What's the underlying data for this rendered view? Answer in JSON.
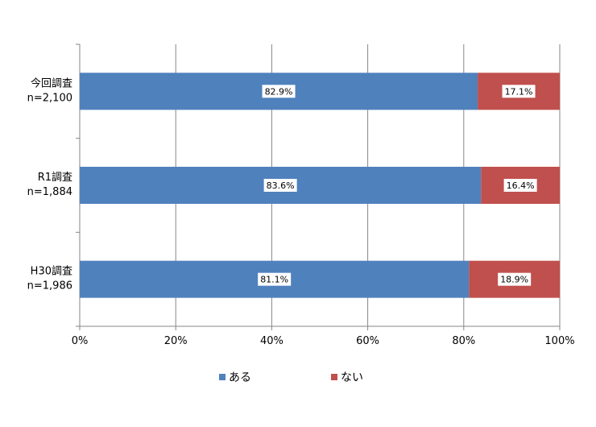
{
  "chart_data": {
    "type": "bar",
    "orientation": "horizontal",
    "stacked": true,
    "percent": true,
    "categories": [
      [
        "今回調査",
        "n=2,100"
      ],
      [
        "R1調査",
        "n=1,884"
      ],
      [
        "H30調査",
        "n=1,986"
      ]
    ],
    "series": [
      {
        "name": "ある",
        "color": "#4f81bd",
        "values": [
          82.9,
          83.6,
          81.1
        ],
        "labels": [
          "82.9%",
          "83.6%",
          "81.1%"
        ]
      },
      {
        "name": "ない",
        "color": "#c0504d",
        "values": [
          17.1,
          16.4,
          18.9
        ],
        "labels": [
          "17.1%",
          "16.4%",
          "18.9%"
        ]
      }
    ],
    "x_ticks": [
      "0%",
      "20%",
      "40%",
      "60%",
      "80%",
      "100%"
    ],
    "xlim": [
      0,
      100
    ],
    "grid": true,
    "legend_position": "bottom"
  },
  "legend": {
    "items": [
      {
        "name": "ある",
        "color": "#4f81bd"
      },
      {
        "name": "ない",
        "color": "#c0504d"
      }
    ]
  }
}
